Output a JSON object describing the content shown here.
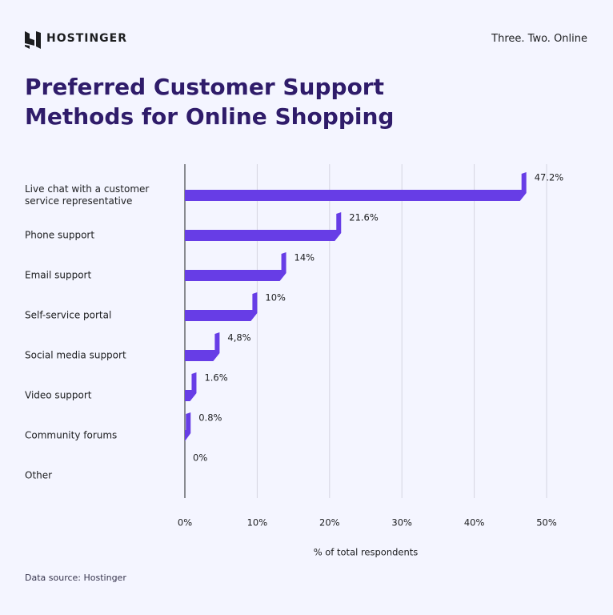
{
  "brand": "HOSTINGER",
  "tagline": "Three. Two. Online",
  "source": "Data source: Hostinger",
  "chart_data": {
    "type": "hbar",
    "title": "Preferred Customer Support Methods for Online Shopping",
    "categories": [
      "Live chat with a customer service representative",
      "Phone support",
      "Email support",
      "Self-service portal",
      "Social media support",
      "Video support",
      "Community forums",
      "Other"
    ],
    "values": [
      47.2,
      21.6,
      14,
      10,
      4.8,
      1.6,
      0.8,
      0
    ],
    "value_labels": [
      "47.2%",
      "21.6%",
      "14%",
      "10%",
      "4,8%",
      "1.6%",
      "0.8%",
      "0%"
    ],
    "color": "#673de6",
    "xlabel": "% of total respondents",
    "xlim": [
      0,
      50
    ],
    "xticks": [
      {
        "value": 0,
        "label": "0%"
      },
      {
        "value": 10,
        "label": "10%"
      },
      {
        "value": 20,
        "label": "20%"
      },
      {
        "value": 30,
        "label": "30%"
      },
      {
        "value": 40,
        "label": "40%"
      },
      {
        "value": 50,
        "label": "50%"
      }
    ],
    "grid": true
  }
}
